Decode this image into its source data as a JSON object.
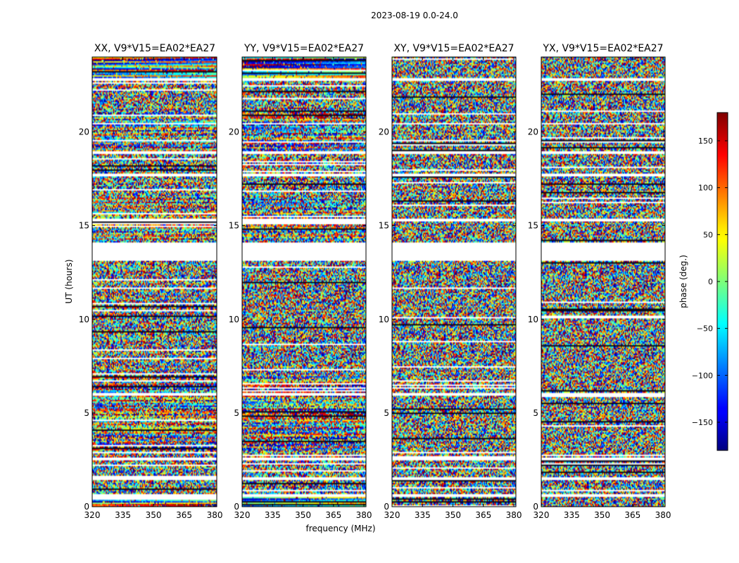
{
  "chart_data": {
    "type": "heatmap",
    "suptitle": "2023-08-19 0.0-24.0",
    "xlabel": "frequency (MHz)",
    "ylabel": "UT (hours)",
    "xlim": [
      320,
      381
    ],
    "ylim": [
      0,
      24
    ],
    "xticks": [
      320,
      335,
      350,
      365,
      380
    ],
    "yticks": [
      0,
      5,
      10,
      15,
      20
    ],
    "panels": [
      {
        "title": "XX, V9*V15=EA02*EA27",
        "pol": "XX",
        "coherent": true
      },
      {
        "title": "YY, V9*V15=EA02*EA27",
        "pol": "YY",
        "coherent": true
      },
      {
        "title": "XY, V9*V15=EA02*EA27",
        "pol": "XY",
        "coherent": false
      },
      {
        "title": "YX, V9*V15=EA02*EA27",
        "pol": "YX",
        "coherent": false
      }
    ],
    "flagged_ut_ranges": [
      [
        13.1,
        14.1
      ],
      [
        0.55,
        0.7
      ],
      [
        2.45,
        2.6
      ],
      [
        1.45,
        1.6
      ],
      [
        5.95,
        6.1
      ],
      [
        15.25,
        15.4
      ],
      [
        17.6,
        17.75
      ],
      [
        18.8,
        18.95
      ],
      [
        20.4,
        20.5
      ],
      [
        22.75,
        22.9
      ]
    ],
    "colorbar": {
      "label": "phase (deg.)",
      "range": [
        -180,
        180
      ],
      "ticks": [
        -150,
        -100,
        -50,
        0,
        50,
        100,
        150
      ],
      "tick_labels": [
        "−150",
        "−100",
        "−50",
        "0",
        "50",
        "100",
        "150"
      ],
      "colormap": "jet"
    }
  }
}
